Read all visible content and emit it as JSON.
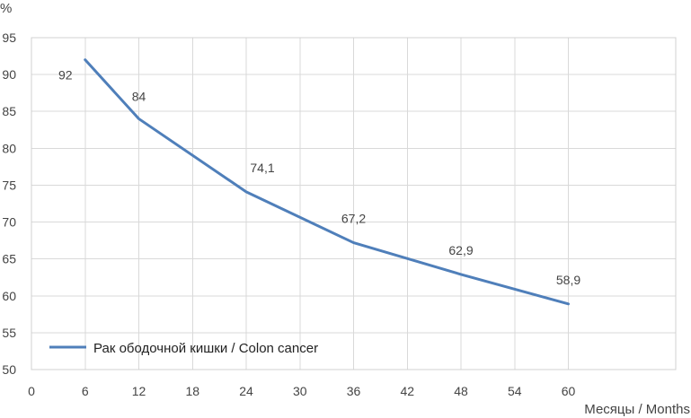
{
  "chart_data": {
    "type": "line",
    "title": "",
    "xlabel": "Месяцы / Months",
    "ylabel": "%",
    "x": [
      6,
      12,
      24,
      36,
      48,
      60
    ],
    "xticks": [
      0,
      6,
      12,
      18,
      24,
      30,
      36,
      42,
      48,
      54,
      60
    ],
    "yticks": [
      50,
      55,
      60,
      65,
      70,
      75,
      80,
      85,
      90,
      95
    ],
    "xlim": [
      0,
      72
    ],
    "ylim": [
      50,
      95
    ],
    "grid": true,
    "legend_position": "bottom-left",
    "series": [
      {
        "name": "Рак ободочной кишки / Colon cancer",
        "color": "#4f7fba",
        "values": [
          92,
          84,
          74.1,
          67.2,
          62.9,
          58.9
        ],
        "labels": [
          "92",
          "84",
          "74,1",
          "67,2",
          "62,9",
          "58,9"
        ]
      }
    ]
  }
}
